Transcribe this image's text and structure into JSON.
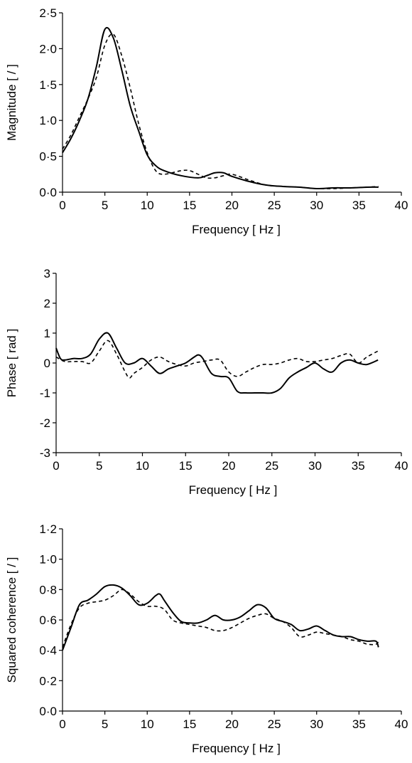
{
  "chart_data": [
    {
      "type": "line",
      "xlabel": "Frequency [ Hz ]",
      "ylabel": "Magnitude [ / ]",
      "xlim": [
        0,
        40
      ],
      "ylim": [
        0,
        2.5
      ],
      "xticks": [
        0,
        5,
        10,
        15,
        20,
        25,
        30,
        35,
        40
      ],
      "xtick_labels": [
        "0",
        "5",
        "10",
        "15",
        "20",
        "25",
        "30",
        "35",
        "40"
      ],
      "yticks": [
        0,
        0.5,
        1.0,
        1.5,
        2.0,
        2.5
      ],
      "ytick_labels": [
        "0·0",
        "0·5",
        "1·0",
        "1·5",
        "2·0",
        "2·5"
      ],
      "grid": false,
      "legend": "none",
      "series": [
        {
          "style": "solid",
          "color": "#000000",
          "x": [
            0,
            1,
            2,
            3,
            4,
            5,
            6,
            7,
            8,
            9,
            10,
            11,
            12,
            14,
            16,
            17,
            18,
            19,
            20,
            22,
            24,
            26,
            28,
            30,
            32,
            34,
            36,
            37.3
          ],
          "y": [
            0.55,
            0.75,
            1.0,
            1.3,
            1.75,
            2.27,
            2.15,
            1.7,
            1.2,
            0.85,
            0.52,
            0.37,
            0.3,
            0.23,
            0.2,
            0.23,
            0.27,
            0.27,
            0.22,
            0.15,
            0.1,
            0.08,
            0.07,
            0.05,
            0.06,
            0.06,
            0.07,
            0.07
          ]
        },
        {
          "style": "dashed",
          "color": "#000000",
          "x": [
            0,
            1,
            2,
            3,
            4,
            5,
            6,
            7,
            8,
            9,
            10,
            11,
            12,
            14,
            15,
            16,
            17,
            18,
            19,
            20,
            22,
            24,
            26,
            28,
            30,
            32,
            34,
            36,
            37.3
          ],
          "y": [
            0.6,
            0.8,
            1.05,
            1.3,
            1.6,
            2.05,
            2.2,
            1.9,
            1.45,
            0.95,
            0.55,
            0.3,
            0.25,
            0.3,
            0.3,
            0.25,
            0.2,
            0.2,
            0.23,
            0.25,
            0.17,
            0.1,
            0.08,
            0.07,
            0.05,
            0.05,
            0.06,
            0.07,
            0.08
          ]
        }
      ]
    },
    {
      "type": "line",
      "xlabel": "Frequency [ Hz ]",
      "ylabel": "Phase [ rad ]",
      "xlim": [
        0,
        40
      ],
      "ylim": [
        -3,
        3
      ],
      "xticks": [
        0,
        5,
        10,
        15,
        20,
        25,
        30,
        35,
        40
      ],
      "xtick_labels": [
        "0",
        "5",
        "10",
        "15",
        "20",
        "25",
        "30",
        "35",
        "40"
      ],
      "yticks": [
        -3,
        -2,
        -1,
        0,
        1,
        2,
        3
      ],
      "ytick_labels": [
        "-3",
        "-2",
        "-1",
        "0",
        "1",
        "2",
        "3"
      ],
      "grid": false,
      "legend": "none",
      "series": [
        {
          "style": "solid",
          "color": "#000000",
          "x": [
            0,
            0.5,
            1,
            2,
            3,
            4,
            5,
            6,
            7,
            8,
            9,
            10,
            11,
            12,
            13,
            14,
            15,
            16,
            16.5,
            17,
            18,
            19,
            20,
            21,
            22,
            23,
            24,
            25,
            26,
            27,
            28,
            29,
            30,
            31,
            32,
            33,
            34,
            35,
            36,
            37.3
          ],
          "y": [
            0.5,
            0.15,
            0.1,
            0.15,
            0.15,
            0.3,
            0.8,
            1.0,
            0.5,
            0.0,
            0.0,
            0.15,
            -0.1,
            -0.35,
            -0.2,
            -0.1,
            0.0,
            0.2,
            0.27,
            0.15,
            -0.35,
            -0.45,
            -0.5,
            -0.95,
            -1.0,
            -1.0,
            -1.0,
            -1.0,
            -0.85,
            -0.5,
            -0.3,
            -0.15,
            0.0,
            -0.2,
            -0.3,
            0.0,
            0.1,
            0.0,
            -0.05,
            0.1
          ]
        },
        {
          "style": "dashed",
          "color": "#000000",
          "x": [
            0,
            1,
            2,
            3,
            4,
            5,
            6,
            7,
            8,
            8.5,
            9,
            10,
            11,
            12,
            13,
            14,
            15,
            16,
            17,
            18,
            19,
            20,
            21,
            22,
            23,
            24,
            25,
            26,
            27,
            28,
            29,
            30,
            31,
            32,
            33,
            34,
            35,
            36,
            37.3
          ],
          "y": [
            0.2,
            0.05,
            0.05,
            0.05,
            0.0,
            0.4,
            0.75,
            0.3,
            -0.3,
            -0.5,
            -0.35,
            -0.15,
            0.1,
            0.2,
            0.05,
            -0.05,
            -0.1,
            0.0,
            0.05,
            0.1,
            0.1,
            -0.3,
            -0.45,
            -0.3,
            -0.15,
            -0.05,
            -0.05,
            0.0,
            0.1,
            0.15,
            0.05,
            0.05,
            0.1,
            0.15,
            0.25,
            0.3,
            0.0,
            0.2,
            0.4
          ]
        }
      ]
    },
    {
      "type": "line",
      "xlabel": "Frequency [ Hz ]",
      "ylabel": "Squared coherence [ / ]",
      "xlim": [
        0,
        40
      ],
      "ylim": [
        0,
        1.2
      ],
      "xticks": [
        0,
        5,
        10,
        15,
        20,
        25,
        30,
        35,
        40
      ],
      "xtick_labels": [
        "0",
        "5",
        "10",
        "15",
        "20",
        "25",
        "30",
        "35",
        "40"
      ],
      "yticks": [
        0,
        0.2,
        0.4,
        0.6,
        0.8,
        1.0,
        1.2
      ],
      "ytick_labels": [
        "0·0",
        "0·2",
        "0·4",
        "0·6",
        "0·8",
        "1·0",
        "1·2"
      ],
      "grid": false,
      "legend": "none",
      "series": [
        {
          "style": "solid",
          "color": "#000000",
          "x": [
            0,
            1,
            2,
            3,
            4,
            5,
            6,
            7,
            8,
            9,
            10,
            11,
            11.5,
            12,
            13,
            14,
            15,
            16,
            17,
            18,
            19,
            20,
            21,
            22,
            23,
            24,
            25,
            26,
            27,
            28,
            29,
            30,
            31,
            32,
            33,
            34,
            35,
            36,
            37,
            37.3
          ],
          "y": [
            0.4,
            0.55,
            0.7,
            0.73,
            0.77,
            0.82,
            0.83,
            0.81,
            0.76,
            0.7,
            0.71,
            0.76,
            0.77,
            0.73,
            0.65,
            0.59,
            0.58,
            0.58,
            0.6,
            0.63,
            0.6,
            0.6,
            0.62,
            0.66,
            0.7,
            0.68,
            0.61,
            0.59,
            0.57,
            0.53,
            0.54,
            0.56,
            0.53,
            0.5,
            0.49,
            0.49,
            0.47,
            0.46,
            0.46,
            0.42
          ]
        },
        {
          "style": "dashed",
          "color": "#000000",
          "x": [
            0,
            1,
            2,
            3,
            4,
            5,
            6,
            7,
            8,
            9,
            10,
            11,
            12,
            13,
            14,
            15,
            16,
            17,
            18,
            19,
            20,
            21,
            22,
            23,
            24,
            25,
            26,
            27,
            28,
            29,
            30,
            31,
            32,
            33,
            34,
            35,
            36,
            37,
            37.3
          ],
          "y": [
            0.42,
            0.57,
            0.68,
            0.71,
            0.72,
            0.73,
            0.76,
            0.8,
            0.77,
            0.72,
            0.69,
            0.69,
            0.67,
            0.6,
            0.58,
            0.57,
            0.56,
            0.55,
            0.53,
            0.53,
            0.55,
            0.58,
            0.61,
            0.63,
            0.64,
            0.61,
            0.59,
            0.55,
            0.49,
            0.5,
            0.52,
            0.51,
            0.5,
            0.49,
            0.47,
            0.46,
            0.44,
            0.44,
            0.46
          ]
        }
      ]
    }
  ]
}
